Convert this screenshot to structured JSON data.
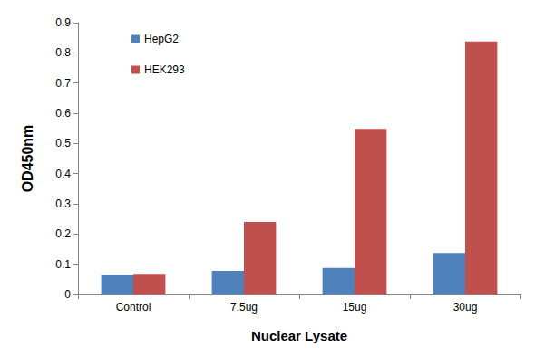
{
  "chart_data": {
    "type": "bar",
    "x_label": "Nuclear Lysate",
    "y_label": "OD450nm",
    "categories": [
      "Control",
      "7.5ug",
      "15ug",
      "30ug"
    ],
    "series": [
      {
        "name": "HepG2",
        "color": "#4f81bd",
        "values": [
          0.065,
          0.078,
          0.088,
          0.137
        ]
      },
      {
        "name": "HEK293",
        "color": "#c0504d",
        "values": [
          0.068,
          0.24,
          0.548,
          0.838
        ]
      }
    ],
    "ylim": [
      0,
      0.9
    ],
    "yticks": [
      0,
      0.1,
      0.2,
      0.3,
      0.4,
      0.5,
      0.6,
      0.7,
      0.8,
      0.9
    ],
    "grid": false,
    "legend": "upper left"
  }
}
